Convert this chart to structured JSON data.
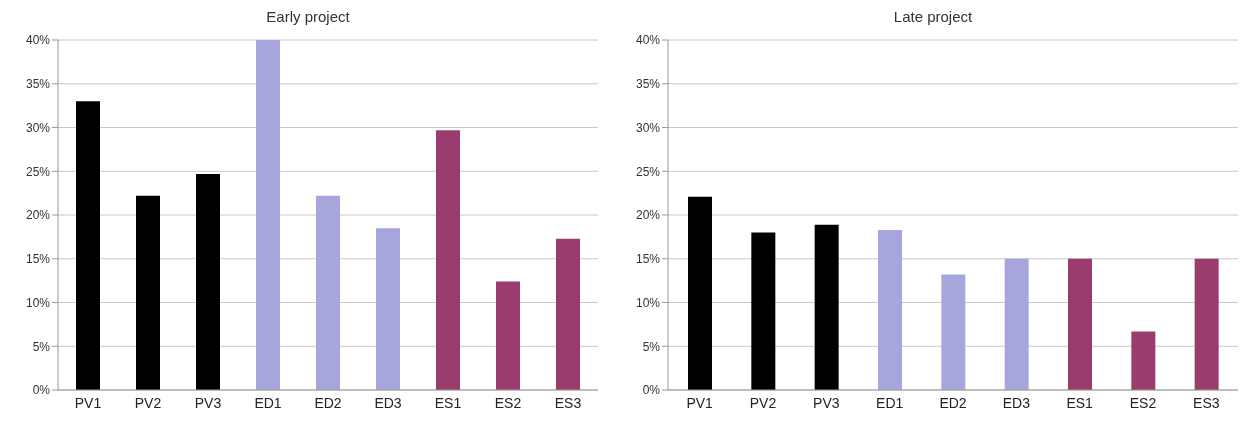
{
  "chart_data": [
    {
      "type": "bar",
      "title": "Early project",
      "categories": [
        "PV1",
        "PV2",
        "PV3",
        "ED1",
        "ED2",
        "ED3",
        "ES1",
        "ES2",
        "ES3"
      ],
      "values": [
        33,
        22.2,
        24.7,
        40,
        22.2,
        18.5,
        29.7,
        12.4,
        17.3
      ],
      "colors": [
        "#000000",
        "#000000",
        "#000000",
        "#a6a6dc",
        "#a6a6dc",
        "#a6a6dc",
        "#9b3c6e",
        "#9b3c6e",
        "#9b3c6e"
      ],
      "ylim": [
        0,
        40
      ],
      "yticks": [
        {
          "value": 0,
          "label": "0%"
        },
        {
          "value": 5,
          "label": "5%"
        },
        {
          "value": 10,
          "label": "10%"
        },
        {
          "value": 15,
          "label": "15%"
        },
        {
          "value": 20,
          "label": "20%"
        },
        {
          "value": 25,
          "label": "25%"
        },
        {
          "value": 30,
          "label": "30%"
        },
        {
          "value": 35,
          "label": "35%"
        },
        {
          "value": 40,
          "label": "40%"
        }
      ],
      "grid": "y"
    },
    {
      "type": "bar",
      "title": "Late project",
      "categories": [
        "PV1",
        "PV2",
        "PV3",
        "ED1",
        "ED2",
        "ED3",
        "ES1",
        "ES2",
        "ES3"
      ],
      "values": [
        22.1,
        18,
        18.9,
        18.3,
        13.2,
        15,
        15,
        6.7,
        15
      ],
      "colors": [
        "#000000",
        "#000000",
        "#000000",
        "#a6a6dc",
        "#a6a6dc",
        "#a6a6dc",
        "#9b3c6e",
        "#9b3c6e",
        "#9b3c6e"
      ],
      "ylim": [
        0,
        40
      ],
      "yticks": [
        {
          "value": 0,
          "label": "0%"
        },
        {
          "value": 5,
          "label": "5%"
        },
        {
          "value": 10,
          "label": "10%"
        },
        {
          "value": 15,
          "label": "15%"
        },
        {
          "value": 20,
          "label": "20%"
        },
        {
          "value": 25,
          "label": "25%"
        },
        {
          "value": 30,
          "label": "30%"
        },
        {
          "value": 35,
          "label": "35%"
        },
        {
          "value": 40,
          "label": "40%"
        }
      ],
      "grid": "y"
    }
  ]
}
